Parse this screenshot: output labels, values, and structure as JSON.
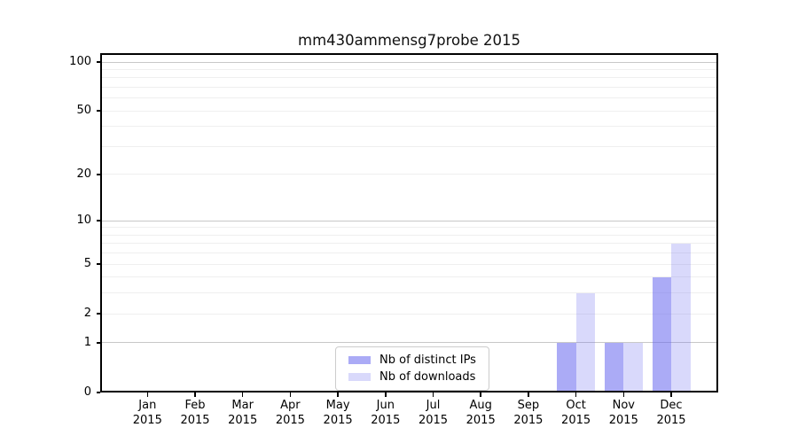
{
  "chart_data": {
    "type": "bar",
    "title": "mm430ammensg7probe 2015",
    "categories": [
      "Jan",
      "Feb",
      "Mar",
      "Apr",
      "May",
      "Jun",
      "Jul",
      "Aug",
      "Sep",
      "Oct",
      "Nov",
      "Dec"
    ],
    "x_tick_year": "2015",
    "series": [
      {
        "name": "Nb of distinct IPs",
        "color": "rgba(102,102,238,0.55)",
        "values": [
          0,
          0,
          0,
          0,
          0,
          0,
          0,
          0,
          0,
          1,
          1,
          4
        ]
      },
      {
        "name": "Nb of downloads",
        "color": "rgba(102,102,238,0.25)",
        "values": [
          0,
          0,
          0,
          0,
          0,
          0,
          0,
          0,
          0,
          3,
          1,
          7
        ]
      }
    ],
    "y_ticks": [
      0,
      1,
      2,
      5,
      10,
      20,
      50,
      100
    ],
    "y_scale": "log10(1+v)",
    "y_max": 113,
    "grid": {
      "minor_values": [
        2,
        3,
        4,
        5,
        6,
        7,
        8,
        9,
        20,
        30,
        40,
        50,
        60,
        70,
        80,
        90
      ],
      "major_values": [
        1,
        10,
        100
      ],
      "minor_color": "#efefef",
      "major_color": "#c8c8c8"
    },
    "legend": {
      "position": "lower center"
    }
  }
}
